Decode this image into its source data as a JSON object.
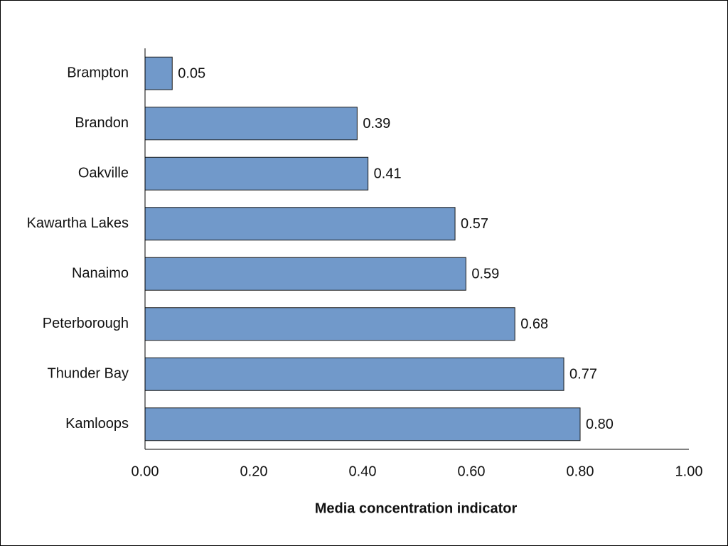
{
  "chart_data": {
    "type": "barh",
    "x_label": "Media concentration indicator",
    "categories": [
      "Brampton",
      "Brandon",
      "Oakville",
      "Kawartha Lakes",
      "Nanaimo",
      "Peterborough",
      "Thunder Bay",
      "Kamloops"
    ],
    "values": [
      0.05,
      0.39,
      0.41,
      0.57,
      0.59,
      0.68,
      0.77,
      0.8
    ],
    "value_labels": [
      "0.05",
      "0.39",
      "0.41",
      "0.57",
      "0.59",
      "0.68",
      "0.77",
      "0.80"
    ],
    "color": "#7199ca",
    "xlim": [
      0,
      1
    ],
    "xticks": [
      {
        "value": 0,
        "label": "0.00"
      },
      {
        "value": 0.2,
        "label": "0.20"
      },
      {
        "value": 0.4,
        "label": "0.40"
      },
      {
        "value": 0.6,
        "label": "0.60"
      },
      {
        "value": 0.8,
        "label": "0.80"
      },
      {
        "value": 1,
        "label": "1.00"
      }
    ],
    "grid": false
  }
}
